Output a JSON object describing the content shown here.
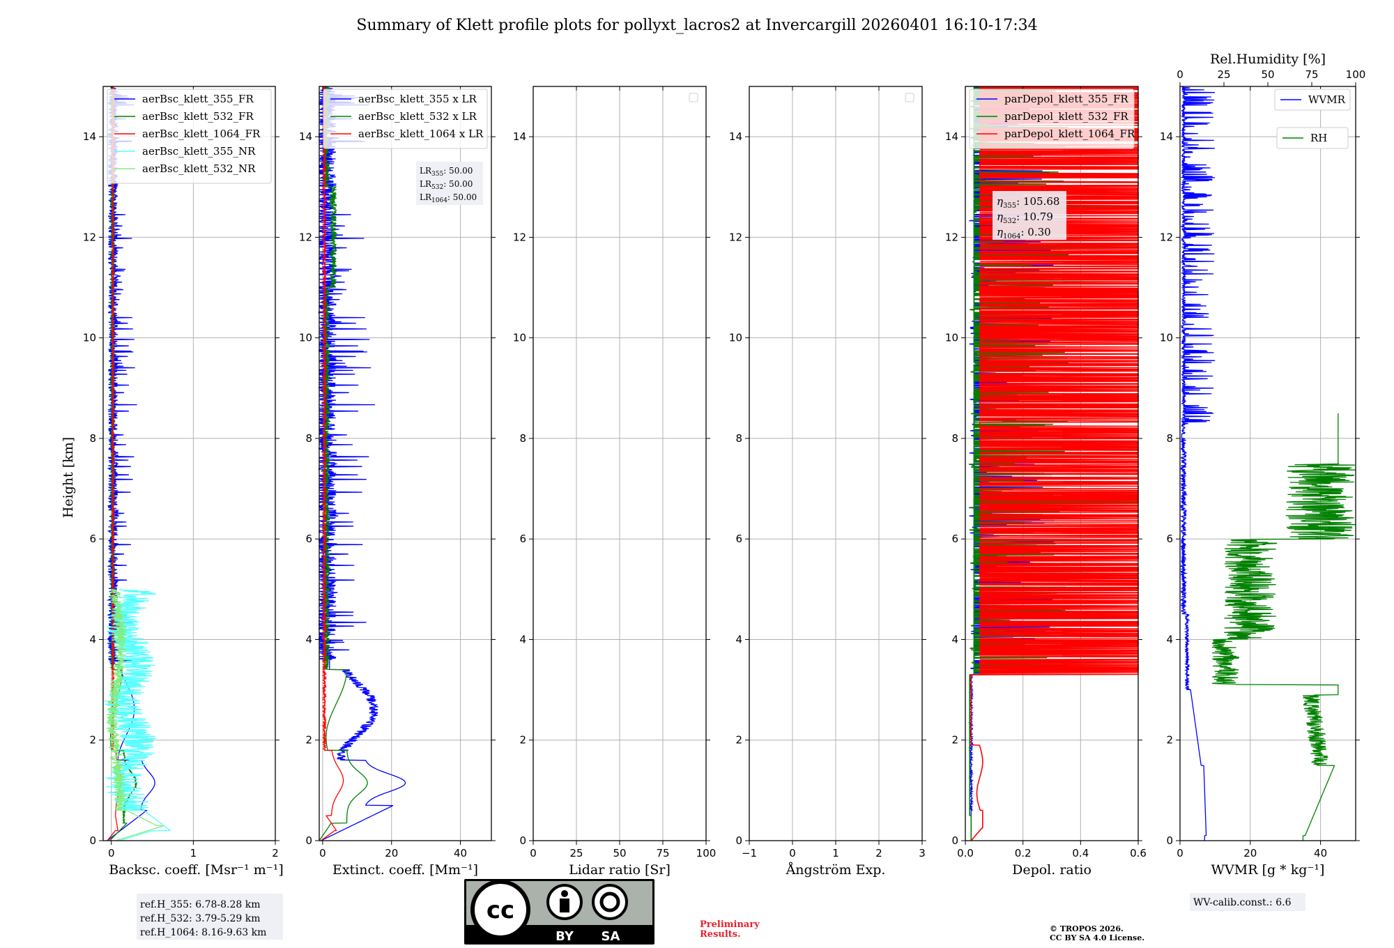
{
  "title": "Summary of Klett profile plots for pollyxt_lacros2 at Invercargill 20260401 16:10-17:34",
  "ylabel": "Height [km]",
  "colors": {
    "c355": "#0000ff",
    "c532": "#008000",
    "c1064": "#ff0000",
    "nr355": "#55ffff",
    "nr532": "#80ee80",
    "grid": "#b0b0b0"
  },
  "chart_data": [
    {
      "id": "bsc",
      "type": "line",
      "xlabel": "Backsc. coeff. [Msr⁻¹ m⁻¹]",
      "xlim": [
        -0.1,
        2.0
      ],
      "ylim": [
        0,
        15
      ],
      "xticks": [
        {
          "v": 0,
          "t": "0"
        },
        {
          "v": 1,
          "t": "1"
        },
        {
          "v": 2,
          "t": "2"
        }
      ],
      "series": [
        {
          "name": "aerBsc_klett_355_FR",
          "color": "#0000ff",
          "kind": "bsc355"
        },
        {
          "name": "aerBsc_klett_532_FR",
          "color": "#008000",
          "kind": "bsc532"
        },
        {
          "name": "aerBsc_klett_1064_FR",
          "color": "#ff0000",
          "kind": "bsc1064"
        },
        {
          "name": "aerBsc_klett_355_NR",
          "color": "#55ffff",
          "kind": "bsc355nr"
        },
        {
          "name": "aerBsc_klett_532_NR",
          "color": "#80ee80",
          "kind": "bsc532nr"
        }
      ],
      "ref_heights": [
        "ref.H_355: 6.78-8.28 km",
        "ref.H_532: 3.79-5.29 km",
        "ref.H_1064: 8.16-9.63 km"
      ]
    },
    {
      "id": "ext",
      "type": "line",
      "xlabel": "Extinct. coeff. [Mm⁻¹]",
      "xlim": [
        -1,
        49
      ],
      "ylim": [
        0,
        15
      ],
      "xticks": [
        {
          "v": 0,
          "t": "0"
        },
        {
          "v": 20,
          "t": "20"
        },
        {
          "v": 40,
          "t": "40"
        }
      ],
      "series": [
        {
          "name": "aerBsc_klett_355 x LR",
          "color": "#0000ff",
          "kind": "ext355"
        },
        {
          "name": "aerBsc_klett_532 x LR",
          "color": "#008000",
          "kind": "ext532"
        },
        {
          "name": "aerBsc_klett_1064 x LR",
          "color": "#ff0000",
          "kind": "ext1064"
        }
      ],
      "lidar_ratios": [
        {
          "label": "LR",
          "sub": "355",
          "value": ": 50.00"
        },
        {
          "label": "LR",
          "sub": "532",
          "value": ": 50.00"
        },
        {
          "label": "LR",
          "sub": "1064",
          "value": ": 50.00"
        }
      ]
    },
    {
      "id": "lr",
      "type": "line",
      "xlabel": "Lidar ratio [Sr]",
      "xlim": [
        0,
        100
      ],
      "ylim": [
        0,
        15
      ],
      "xticks": [
        {
          "v": 0,
          "t": "0"
        },
        {
          "v": 25,
          "t": "25"
        },
        {
          "v": 50,
          "t": "50"
        },
        {
          "v": 75,
          "t": "75"
        },
        {
          "v": 100,
          "t": "100"
        }
      ],
      "series": []
    },
    {
      "id": "ae",
      "type": "line",
      "xlabel": "Ångström Exp.",
      "xlim": [
        -1,
        3
      ],
      "ylim": [
        0,
        15
      ],
      "xticks": [
        {
          "v": -1,
          "t": "−1"
        },
        {
          "v": 0,
          "t": "0"
        },
        {
          "v": 1,
          "t": "1"
        },
        {
          "v": 2,
          "t": "2"
        },
        {
          "v": 3,
          "t": "3"
        }
      ],
      "series": []
    },
    {
      "id": "dep",
      "type": "line",
      "xlabel": "Depol. ratio",
      "xlim": [
        0,
        0.6
      ],
      "ylim": [
        0,
        15
      ],
      "xticks": [
        {
          "v": 0,
          "t": "0.0"
        },
        {
          "v": 0.2,
          "t": "0.2"
        },
        {
          "v": 0.4,
          "t": "0.4"
        },
        {
          "v": 0.6,
          "t": "0.6"
        }
      ],
      "series": [
        {
          "name": "parDepol_klett_355_FR",
          "color": "#0000ff",
          "kind": "dep355"
        },
        {
          "name": "parDepol_klett_532_FR",
          "color": "#008000",
          "kind": "dep532"
        },
        {
          "name": "parDepol_klett_1064_FR",
          "color": "#ff0000",
          "kind": "dep1064"
        }
      ],
      "eta": [
        {
          "sub": "355",
          "value": ": 105.68"
        },
        {
          "sub": "532",
          "value": ": 10.79"
        },
        {
          "sub": "1064",
          "value": ": 0.30"
        }
      ]
    },
    {
      "id": "wv",
      "type": "line",
      "xlabel": "WVMR [g * kg⁻¹]",
      "xlim": [
        0,
        50
      ],
      "ylim": [
        0,
        15
      ],
      "xticks": [
        {
          "v": 0,
          "t": "0"
        },
        {
          "v": 20,
          "t": "20"
        },
        {
          "v": 40,
          "t": "40"
        }
      ],
      "top_axis": {
        "label": "Rel.Humidity [%]",
        "lim": [
          0,
          100
        ],
        "ticks": [
          {
            "v": 0,
            "t": "0"
          },
          {
            "v": 25,
            "t": "25"
          },
          {
            "v": 50,
            "t": "50"
          },
          {
            "v": 75,
            "t": "75"
          },
          {
            "v": 100,
            "t": "100"
          }
        ]
      },
      "series": [
        {
          "name": "WVMR",
          "color": "#0000ff",
          "kind": "wvmr"
        },
        {
          "name": "RH",
          "color": "#008000",
          "kind": "rh"
        }
      ],
      "calib": "WV-calib.const.: 6.6"
    }
  ],
  "yticks": [
    {
      "v": 0,
      "t": "0"
    },
    {
      "v": 2,
      "t": "2"
    },
    {
      "v": 4,
      "t": "4"
    },
    {
      "v": 6,
      "t": "6"
    },
    {
      "v": 8,
      "t": "8"
    },
    {
      "v": 10,
      "t": "10"
    },
    {
      "v": 12,
      "t": "12"
    },
    {
      "v": 14,
      "t": "14"
    }
  ],
  "eta_symbol": "η",
  "license_badge": {
    "cc": "cc",
    "by": "BY",
    "sa": "SA"
  },
  "preliminary": [
    "Preliminary",
    "Results."
  ],
  "copyright": [
    "© TROPOS 2026.",
    "CC BY SA 4.0 License."
  ]
}
